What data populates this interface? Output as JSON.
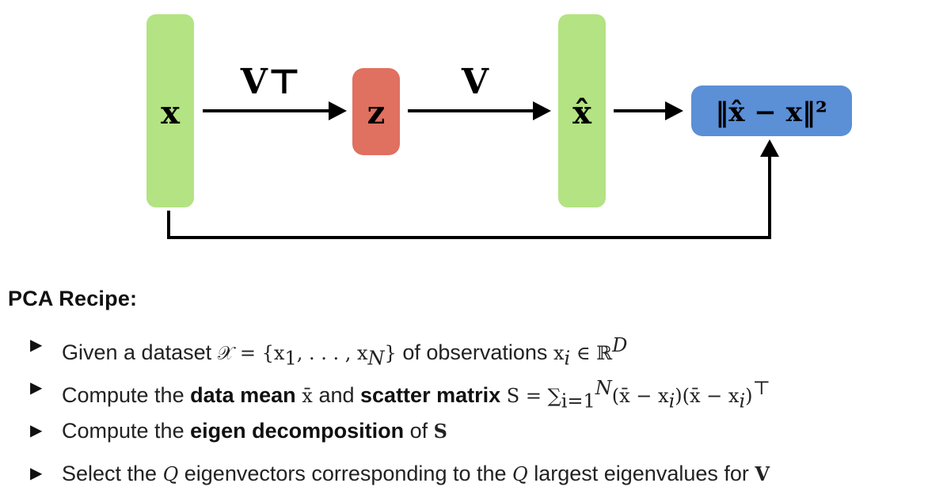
{
  "diagram": {
    "input_label": "x",
    "encoder_label": "V⊤",
    "latent_label": "z",
    "decoder_label": "V",
    "reconstruction_label": "x̂",
    "loss_label": "‖x̂ − x‖²",
    "colors": {
      "input_bar": "#b3e383",
      "latent_box": "#e07060",
      "loss_box": "#5b8fd6",
      "arrows": "#000000"
    }
  },
  "recipe": {
    "title": "PCA Recipe:",
    "bullet_icon": "triangle-right-icon",
    "steps": [
      {
        "t1": "Given a dataset ",
        "m1": "𝒳 = {x",
        "s1": "1",
        "m2": ", . . . , x",
        "s2": "N",
        "m3": "}",
        "t2": " of observations ",
        "m4": "x",
        "s3": "i",
        "m5": " ∈ ℝ",
        "s4": "D"
      },
      {
        "t1": "Compute the ",
        "b1": "data mean",
        "m1": " x̄ ",
        "t2": "and ",
        "b2": "scatter matrix",
        "m2": " S = ∑",
        "s1": "i=1",
        "sup1": "N",
        "m3": "(x̄ − x",
        "s2": "i",
        "m4": ")(x̄ − x",
        "s3": "i",
        "m5": ")",
        "sup2": "⊤"
      },
      {
        "t1": "Compute the ",
        "b1": "eigen decomposition",
        "t2": " of ",
        "m1": "S"
      },
      {
        "t1": "Select the ",
        "m1": "Q",
        "t2": " eigenvectors corresponding to the ",
        "m2": "Q",
        "t3": " largest eigenvalues for ",
        "m3": "V"
      }
    ]
  }
}
